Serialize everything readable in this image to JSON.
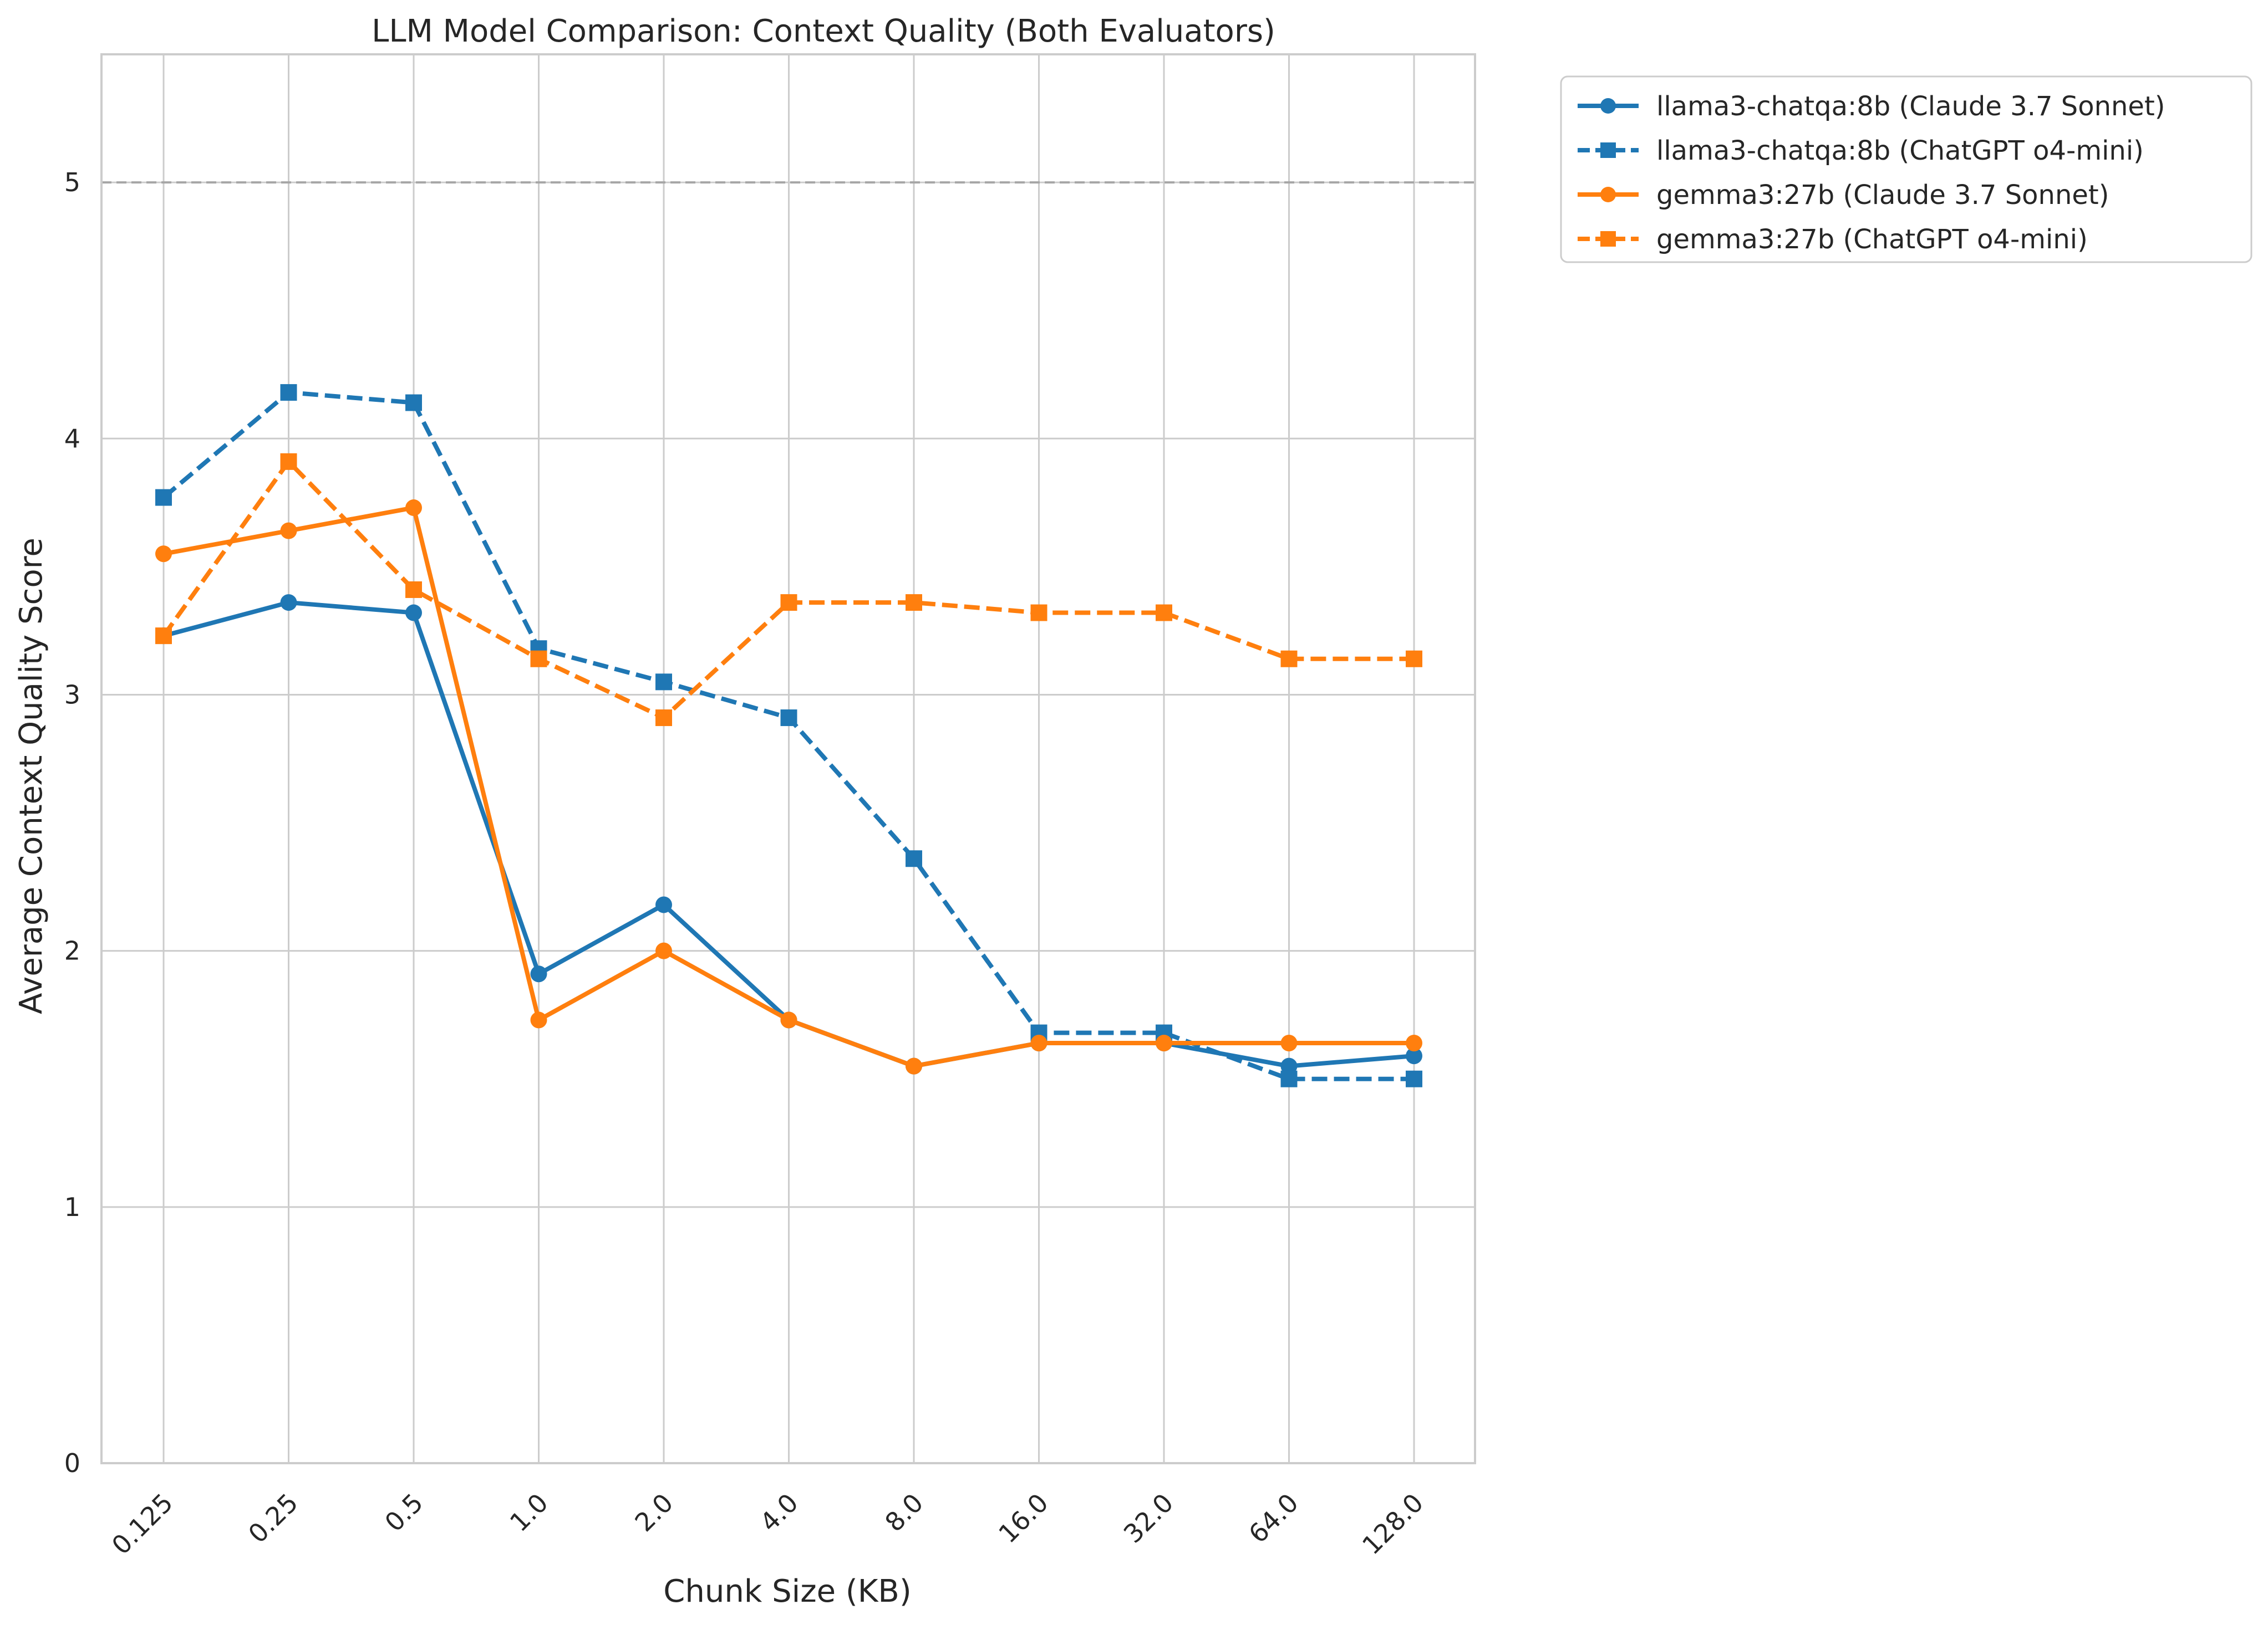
{
  "chart_data": {
    "type": "line",
    "title": "LLM Model Comparison: Context Quality (Both Evaluators)",
    "xlabel": "Chunk Size (KB)",
    "ylabel": "Average Context Quality Score",
    "categories": [
      "0.125",
      "0.25",
      "0.5",
      "1.0",
      "2.0",
      "4.0",
      "8.0",
      "16.0",
      "32.0",
      "64.0",
      "128.0"
    ],
    "ylim": [
      0,
      5.5
    ],
    "yticks": [
      "0",
      "1",
      "2",
      "3",
      "4",
      "5"
    ],
    "reference_line": 5,
    "grid": true,
    "legend_position": "outside-top-right",
    "series": [
      {
        "name": "llama3-chatqa:8b (Claude 3.7 Sonnet)",
        "color": "#1f77b4",
        "dash": "solid",
        "marker": "circle",
        "values": [
          3.23,
          3.36,
          3.32,
          1.91,
          2.18,
          1.73,
          1.55,
          1.64,
          1.64,
          1.55,
          1.59
        ]
      },
      {
        "name": "llama3-chatqa:8b (ChatGPT o4-mini)",
        "color": "#1f77b4",
        "dash": "dashed",
        "marker": "square",
        "values": [
          3.77,
          4.18,
          4.14,
          3.18,
          3.05,
          2.91,
          2.36,
          1.68,
          1.68,
          1.5,
          1.5
        ]
      },
      {
        "name": "gemma3:27b (Claude 3.7 Sonnet)",
        "color": "#ff7f0e",
        "dash": "solid",
        "marker": "circle",
        "values": [
          3.55,
          3.64,
          3.73,
          1.73,
          2.0,
          1.73,
          1.55,
          1.64,
          1.64,
          1.64,
          1.64
        ]
      },
      {
        "name": "gemma3:27b (ChatGPT o4-mini)",
        "color": "#ff7f0e",
        "dash": "dashed",
        "marker": "square",
        "values": [
          3.23,
          3.91,
          3.41,
          3.14,
          2.91,
          3.36,
          3.36,
          3.32,
          3.32,
          3.14,
          3.14
        ]
      }
    ]
  }
}
